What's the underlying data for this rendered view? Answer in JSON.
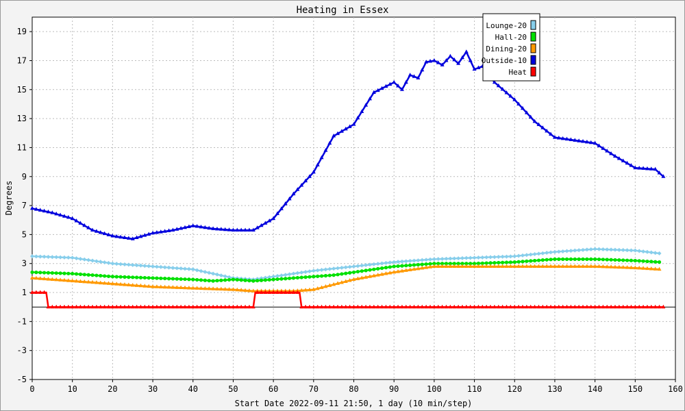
{
  "chart_data": {
    "type": "line",
    "title": "Heating in Essex",
    "xlabel": "Start Date 2022-09-11 21:50, 1 day (10 min/step)",
    "ylabel": "Degrees",
    "xlim": [
      0,
      160
    ],
    "ylim": [
      -5,
      20
    ],
    "xticks": [
      0,
      10,
      20,
      30,
      40,
      50,
      60,
      70,
      80,
      90,
      100,
      110,
      120,
      130,
      140,
      150,
      160
    ],
    "yticks": [
      -5,
      -3,
      -1,
      1,
      3,
      5,
      7,
      9,
      11,
      13,
      15,
      17,
      19
    ],
    "grid": true,
    "legend_position": "top-right",
    "series": [
      {
        "name": "Lounge-20",
        "color": "#87ceeb",
        "marker": "diamond",
        "x": [
          0,
          10,
          20,
          30,
          40,
          45,
          50,
          55,
          60,
          65,
          70,
          80,
          90,
          100,
          110,
          120,
          130,
          140,
          150,
          156
        ],
        "y": [
          3.5,
          3.4,
          3.0,
          2.8,
          2.6,
          2.3,
          2.0,
          1.9,
          2.1,
          2.3,
          2.5,
          2.8,
          3.1,
          3.3,
          3.4,
          3.5,
          3.8,
          4.0,
          3.9,
          3.7
        ]
      },
      {
        "name": "Hall-20",
        "color": "#00e000",
        "marker": "circle",
        "x": [
          0,
          10,
          20,
          30,
          40,
          45,
          50,
          55,
          60,
          65,
          70,
          75,
          80,
          90,
          100,
          110,
          120,
          130,
          140,
          150,
          156
        ],
        "y": [
          2.4,
          2.3,
          2.1,
          2.0,
          1.9,
          1.8,
          1.9,
          1.8,
          1.9,
          2.0,
          2.1,
          2.2,
          2.4,
          2.8,
          3.0,
          3.0,
          3.1,
          3.3,
          3.3,
          3.2,
          3.1
        ]
      },
      {
        "name": "Dining-20",
        "color": "#ff9900",
        "marker": "triangle",
        "x": [
          0,
          10,
          20,
          30,
          40,
          50,
          55,
          60,
          65,
          70,
          80,
          90,
          100,
          110,
          120,
          130,
          140,
          150,
          156
        ],
        "y": [
          2.0,
          1.8,
          1.6,
          1.4,
          1.3,
          1.2,
          1.1,
          1.1,
          1.1,
          1.2,
          1.9,
          2.4,
          2.8,
          2.8,
          2.8,
          2.8,
          2.8,
          2.7,
          2.6
        ]
      },
      {
        "name": "Outside-10",
        "color": "#0000dd",
        "marker": "triangle",
        "x": [
          0,
          5,
          10,
          15,
          20,
          25,
          30,
          35,
          40,
          45,
          50,
          55,
          60,
          65,
          70,
          75,
          80,
          85,
          90,
          92,
          94,
          96,
          98,
          100,
          102,
          104,
          106,
          108,
          110,
          112,
          115,
          120,
          125,
          130,
          135,
          140,
          145,
          150,
          155,
          157
        ],
        "y": [
          6.8,
          6.5,
          6.1,
          5.3,
          4.9,
          4.7,
          5.1,
          5.3,
          5.6,
          5.4,
          5.3,
          5.3,
          6.1,
          7.8,
          9.3,
          11.8,
          12.6,
          14.8,
          15.5,
          15.0,
          16.0,
          15.8,
          16.9,
          17.0,
          16.7,
          17.3,
          16.8,
          17.6,
          16.4,
          16.6,
          15.5,
          14.3,
          12.8,
          11.7,
          11.5,
          11.3,
          10.4,
          9.6,
          9.5,
          9.0
        ]
      },
      {
        "name": "Heat",
        "color": "#ff0000",
        "marker": "triangle",
        "x": [
          0,
          3.5,
          4,
          55,
          55.5,
          66.5,
          67,
          157
        ],
        "y": [
          1,
          1,
          0,
          0,
          1,
          1,
          0,
          0
        ]
      }
    ]
  }
}
